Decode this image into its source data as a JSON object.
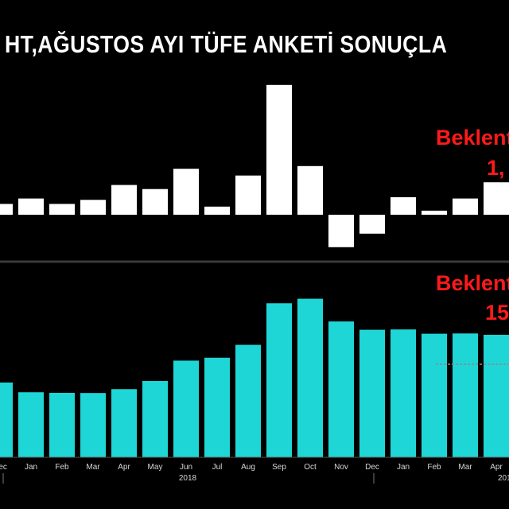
{
  "title": "HT,AĞUSTOS AYI TÜFE ANKETİ SONUÇLA",
  "annotations": {
    "top_label": "Beklent",
    "top_value": "1,",
    "bottom_label": "Beklent",
    "bottom_value": "15"
  },
  "chart_data": [
    {
      "type": "bar",
      "panel": "top",
      "categories": [
        "Dec",
        "Jan",
        "Feb",
        "Mar",
        "Apr",
        "May",
        "Jun",
        "Jul",
        "Aug",
        "Sep",
        "Oct",
        "Nov",
        "Dec",
        "Jan",
        "Feb",
        "Mar",
        "Apr"
      ],
      "values": [
        0.4,
        0.6,
        0.4,
        0.55,
        1.1,
        0.95,
        1.7,
        0.3,
        1.45,
        4.8,
        1.8,
        -1.2,
        -0.7,
        0.65,
        0.15,
        0.6,
        1.2
      ],
      "bar_color": "#ffffff"
    },
    {
      "type": "bar",
      "panel": "bottom",
      "categories": [
        "Dec",
        "Jan",
        "Feb",
        "Mar",
        "Apr",
        "May",
        "Jun",
        "Jul",
        "Aug",
        "Sep",
        "Oct",
        "Nov",
        "Dec",
        "Jan",
        "Feb",
        "Mar",
        "Apr"
      ],
      "values": [
        11.9,
        10.35,
        10.26,
        10.23,
        10.85,
        12.15,
        15.39,
        15.85,
        17.9,
        24.52,
        25.24,
        21.62,
        20.3,
        20.35,
        19.67,
        19.71,
        19.5
      ],
      "bar_color": "#1fd6d6",
      "year_labels": [
        "2018",
        "201"
      ]
    }
  ]
}
